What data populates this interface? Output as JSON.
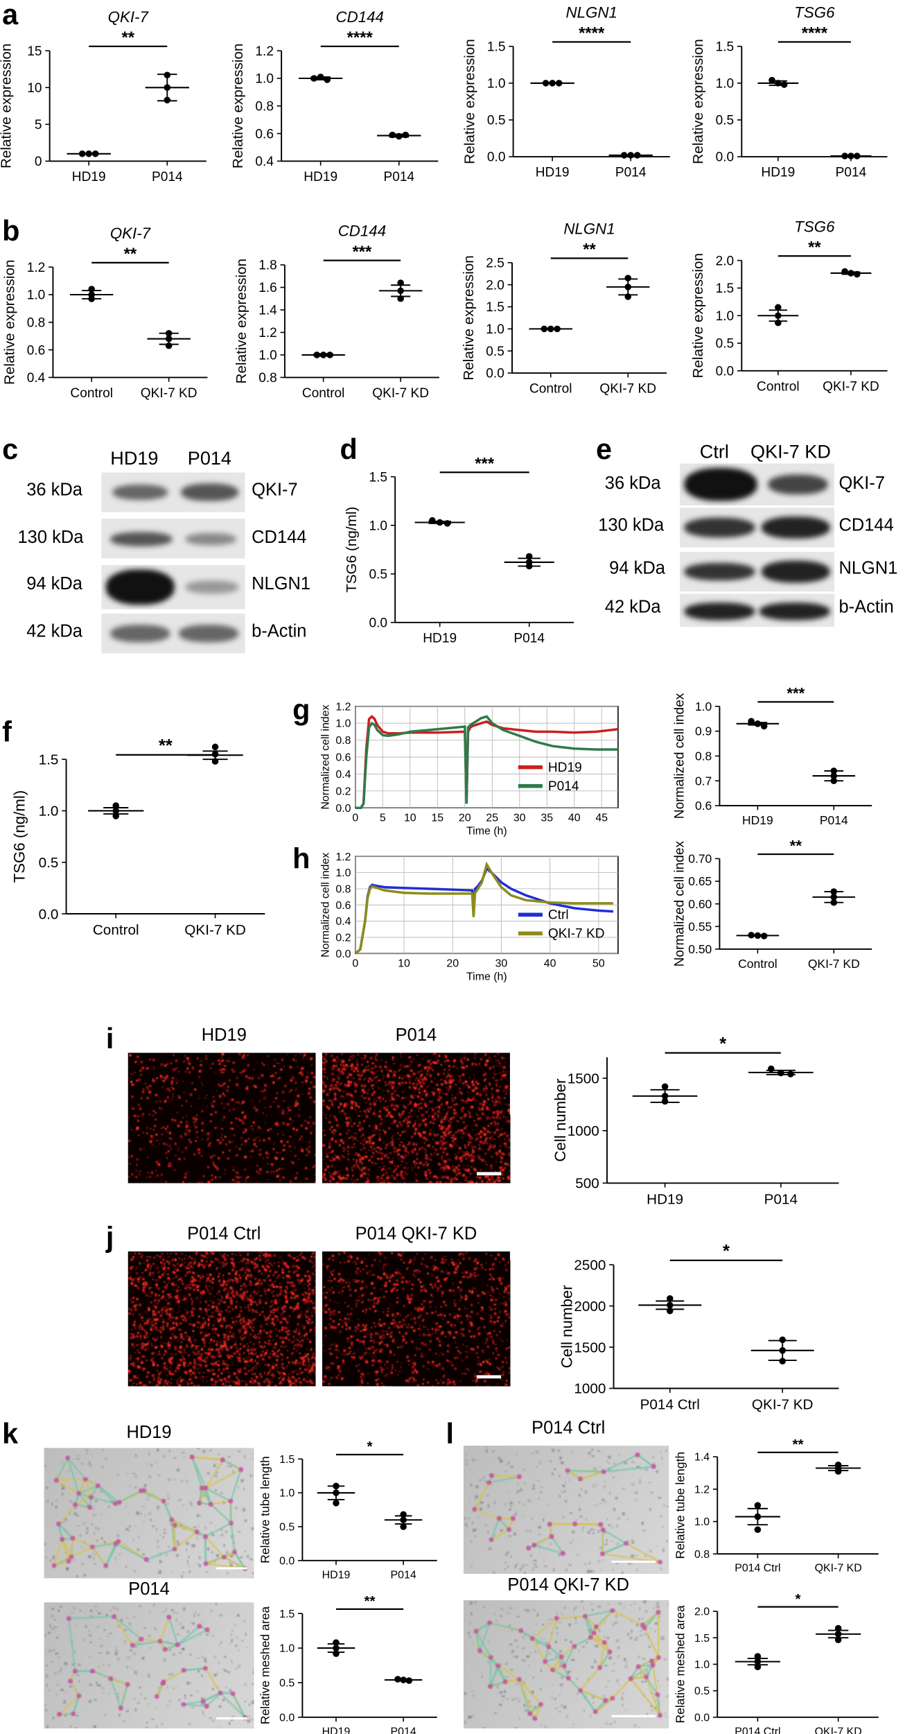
{
  "labels": {
    "a": "a",
    "b": "b",
    "c": "c",
    "d": "d",
    "e": "e",
    "f": "f",
    "g": "g",
    "h": "h",
    "i": "i",
    "j": "j",
    "k": "k",
    "l": "l"
  },
  "blots": {
    "c": {
      "columns": [
        "HD19",
        "P014"
      ],
      "kda": [
        "36 kDa",
        "130 kDa",
        "94 kDa",
        "42 kDa"
      ],
      "proteins": [
        "QKI-7",
        "CD144",
        "NLGN1",
        "b-Actin"
      ]
    },
    "e": {
      "columns": [
        "Ctrl",
        "QKI-7 KD"
      ],
      "kda": [
        "36 kDa",
        "130 kDa",
        "94 kDa",
        "42 kDa"
      ],
      "proteins": [
        "QKI-7",
        "CD144",
        "NLGN1",
        "b-Actin"
      ]
    }
  },
  "images": {
    "i_left": "HD19",
    "i_right": "P014",
    "j_left": "P014 Ctrl",
    "j_right": "P014 QKI-7 KD",
    "k_top": "HD19",
    "k_bottom": "P014",
    "l_top": "P014 Ctrl",
    "l_bottom": "P014 QKI-7 KD"
  },
  "colors": {
    "hd19": "#cc1f1f",
    "p014": "#2e7a4a",
    "ctrl": "#1f2fd6",
    "qki7kd": "#8c8c1a",
    "fluor_dot": "#ff2020",
    "grid": "#bbbbbb"
  },
  "chart_data": [
    {
      "id": "a1",
      "type": "scatter",
      "title": "QKI-7",
      "title_italic": true,
      "ylabel": "Relative expression",
      "categories": [
        "HD19",
        "P014"
      ],
      "ylim": [
        0,
        15
      ],
      "yticks": [
        0,
        5,
        10,
        15
      ],
      "groups": [
        {
          "points": [
            1,
            1,
            1
          ],
          "mean": 1,
          "sem": 0.05
        },
        {
          "points": [
            11.7,
            10,
            8.3
          ],
          "mean": 10,
          "sem": 1.8
        }
      ],
      "sig": "**"
    },
    {
      "id": "a2",
      "type": "scatter",
      "title": "CD144",
      "title_italic": true,
      "ylabel": "Relative expression",
      "categories": [
        "HD19",
        "P014"
      ],
      "ylim": [
        0.4,
        1.2
      ],
      "yticks": [
        0.4,
        0.6,
        0.8,
        1.0,
        1.2
      ],
      "groups": [
        {
          "points": [
            1.0,
            1.01,
            0.99
          ],
          "mean": 1.0,
          "sem": 0.01
        },
        {
          "points": [
            0.59,
            0.58,
            0.59
          ],
          "mean": 0.585,
          "sem": 0.01
        }
      ],
      "sig": "****"
    },
    {
      "id": "a3",
      "type": "scatter",
      "title": "NLGN1",
      "title_italic": true,
      "ylabel": "Relative expression",
      "categories": [
        "HD19",
        "P014"
      ],
      "ylim": [
        0,
        1.5
      ],
      "yticks": [
        0.0,
        0.5,
        1.0,
        1.5
      ],
      "groups": [
        {
          "points": [
            1.0,
            1.0,
            1.0
          ],
          "mean": 1.0,
          "sem": 0.005
        },
        {
          "points": [
            0.02,
            0.02,
            0.02
          ],
          "mean": 0.02,
          "sem": 0.005
        }
      ],
      "sig": "****"
    },
    {
      "id": "a4",
      "type": "scatter",
      "title": "TSG6",
      "title_italic": true,
      "ylabel": "Relative expression",
      "categories": [
        "HD19",
        "P014"
      ],
      "ylim": [
        0,
        1.5
      ],
      "yticks": [
        0.0,
        0.5,
        1.0,
        1.5
      ],
      "groups": [
        {
          "points": [
            1.04,
            1.0,
            0.98
          ],
          "mean": 1.0,
          "sem": 0.03
        },
        {
          "points": [
            0.01,
            0.01,
            0.01
          ],
          "mean": 0.01,
          "sem": 0.005
        }
      ],
      "sig": "****"
    },
    {
      "id": "b1",
      "type": "scatter",
      "title": "QKI-7",
      "title_italic": true,
      "ylabel": "Relative expression",
      "categories": [
        "Control",
        "QKI-7 KD"
      ],
      "ylim": [
        0.4,
        1.2
      ],
      "yticks": [
        0.4,
        0.6,
        0.8,
        1.0,
        1.2
      ],
      "groups": [
        {
          "points": [
            1.04,
            1.0,
            0.97
          ],
          "mean": 1.0,
          "sem": 0.03
        },
        {
          "points": [
            0.72,
            0.68,
            0.63
          ],
          "mean": 0.68,
          "sem": 0.04
        }
      ],
      "sig": "**"
    },
    {
      "id": "b2",
      "type": "scatter",
      "title": "CD144",
      "title_italic": true,
      "ylabel": "Relative expression",
      "categories": [
        "Control",
        "QKI-7 KD"
      ],
      "ylim": [
        0.8,
        1.8
      ],
      "yticks": [
        0.8,
        1.0,
        1.2,
        1.4,
        1.6,
        1.8
      ],
      "groups": [
        {
          "points": [
            1.0,
            1.0,
            1.0
          ],
          "mean": 1.0,
          "sem": 0.01
        },
        {
          "points": [
            1.64,
            1.57,
            1.5
          ],
          "mean": 1.57,
          "sem": 0.05
        }
      ],
      "sig": "***"
    },
    {
      "id": "b3",
      "type": "scatter",
      "title": "NLGN1",
      "title_italic": true,
      "ylabel": "Relative expression",
      "categories": [
        "Control",
        "QKI-7 KD"
      ],
      "ylim": [
        0,
        2.5
      ],
      "yticks": [
        0.0,
        0.5,
        1.0,
        1.5,
        2.0,
        2.5
      ],
      "groups": [
        {
          "points": [
            1.0,
            1.0,
            1.0
          ],
          "mean": 1.0,
          "sem": 0.01
        },
        {
          "points": [
            2.15,
            1.95,
            1.73
          ],
          "mean": 1.95,
          "sem": 0.18
        }
      ],
      "sig": "**"
    },
    {
      "id": "b4",
      "type": "scatter",
      "title": "TSG6",
      "title_italic": true,
      "ylabel": "Relative expression",
      "categories": [
        "Control",
        "QKI-7 KD"
      ],
      "ylim": [
        0,
        2.0
      ],
      "yticks": [
        0.0,
        0.5,
        1.0,
        1.5,
        2.0
      ],
      "groups": [
        {
          "points": [
            1.15,
            1.0,
            0.87
          ],
          "mean": 1.0,
          "sem": 0.1
        },
        {
          "points": [
            1.8,
            1.77,
            1.75
          ],
          "mean": 1.77,
          "sem": 0.02
        }
      ],
      "sig": "**"
    },
    {
      "id": "d",
      "type": "scatter",
      "title": "",
      "ylabel": "TSG6 (ng/ml)",
      "categories": [
        "HD19",
        "P014"
      ],
      "ylim": [
        0,
        1.5
      ],
      "yticks": [
        0.0,
        0.5,
        1.0,
        1.5
      ],
      "groups": [
        {
          "points": [
            1.05,
            1.03,
            1.02
          ],
          "mean": 1.03,
          "sem": 0.01
        },
        {
          "points": [
            0.68,
            0.62,
            0.58
          ],
          "mean": 0.62,
          "sem": 0.04
        }
      ],
      "sig": "***"
    },
    {
      "id": "f",
      "type": "scatter",
      "title": "",
      "ylabel": "TSG6 (ng/ml)",
      "categories": [
        "Control",
        "QKI-7 KD"
      ],
      "ylim": [
        0,
        1.5
      ],
      "yticks": [
        0.0,
        0.5,
        1.0,
        1.5
      ],
      "groups": [
        {
          "points": [
            1.05,
            1.0,
            0.95
          ],
          "mean": 1.0,
          "sem": 0.03
        },
        {
          "points": [
            1.62,
            1.55,
            1.48
          ],
          "mean": 1.54,
          "sem": 0.04
        }
      ],
      "sig": "**"
    },
    {
      "id": "g_right",
      "type": "scatter",
      "title": "",
      "ylabel": "Normalized cell index",
      "categories": [
        "HD19",
        "P014"
      ],
      "ylim": [
        0.6,
        1.0
      ],
      "yticks": [
        0.6,
        0.7,
        0.8,
        0.9,
        1.0
      ],
      "groups": [
        {
          "points": [
            0.94,
            0.93,
            0.92
          ],
          "mean": 0.93,
          "sem": 0.005
        },
        {
          "points": [
            0.74,
            0.72,
            0.7
          ],
          "mean": 0.72,
          "sem": 0.02
        }
      ],
      "sig": "***"
    },
    {
      "id": "h_right",
      "type": "scatter",
      "title": "",
      "ylabel": "Normalized cell index",
      "categories": [
        "Control",
        "QKI-7 KD"
      ],
      "ylim": [
        0.5,
        0.7
      ],
      "yticks": [
        0.5,
        0.55,
        0.6,
        0.65,
        0.7
      ],
      "groups": [
        {
          "points": [
            0.531,
            0.53,
            0.529
          ],
          "mean": 0.53,
          "sem": 0.001
        },
        {
          "points": [
            0.627,
            0.615,
            0.603
          ],
          "mean": 0.615,
          "sem": 0.012
        }
      ],
      "sig": "**"
    },
    {
      "id": "i_right",
      "type": "scatter",
      "title": "",
      "ylabel": "Cell number",
      "categories": [
        "HD19",
        "P014"
      ],
      "ylim": [
        500,
        1700
      ],
      "yticks": [
        500,
        1000,
        1500
      ],
      "groups": [
        {
          "points": [
            1420,
            1330,
            1280
          ],
          "mean": 1330,
          "sem": 60
        },
        {
          "points": [
            1590,
            1550,
            1540
          ],
          "mean": 1555,
          "sem": 20
        }
      ],
      "sig": "*"
    },
    {
      "id": "j_right",
      "type": "scatter",
      "title": "",
      "ylabel": "Cell number",
      "categories": [
        "P014 Ctrl",
        "QKI-7 KD"
      ],
      "ylim": [
        1000,
        2500
      ],
      "yticks": [
        1000,
        1500,
        2000,
        2500
      ],
      "groups": [
        {
          "points": [
            2090,
            2010,
            1940
          ],
          "mean": 2010,
          "sem": 50
        },
        {
          "points": [
            1590,
            1460,
            1330
          ],
          "mean": 1460,
          "sem": 120
        }
      ],
      "sig": "*"
    },
    {
      "id": "k1",
      "type": "scatter",
      "title": "",
      "ylabel": "Relative tube length",
      "categories": [
        "HD19",
        "P014"
      ],
      "ylim": [
        0,
        1.5
      ],
      "yticks": [
        0.0,
        0.5,
        1.0,
        1.5
      ],
      "groups": [
        {
          "points": [
            1.1,
            1.0,
            0.85
          ],
          "mean": 1.0,
          "sem": 0.1
        },
        {
          "points": [
            0.68,
            0.6,
            0.5
          ],
          "mean": 0.6,
          "sem": 0.06
        }
      ],
      "sig": "*"
    },
    {
      "id": "k2",
      "type": "scatter",
      "title": "",
      "ylabel": "Relative meshed area",
      "categories": [
        "HD19",
        "P014"
      ],
      "ylim": [
        0,
        1.5
      ],
      "yticks": [
        0.0,
        0.5,
        1.0,
        1.5
      ],
      "groups": [
        {
          "points": [
            1.08,
            1.0,
            0.92
          ],
          "mean": 1.0,
          "sem": 0.06
        },
        {
          "points": [
            0.55,
            0.54,
            0.53
          ],
          "mean": 0.54,
          "sem": 0.01
        }
      ],
      "sig": "**"
    },
    {
      "id": "l1",
      "type": "scatter",
      "title": "",
      "ylabel": "Relative tube length",
      "categories": [
        "P014 Ctrl",
        "QKI-7 KD"
      ],
      "ylim": [
        0.8,
        1.4
      ],
      "yticks": [
        0.8,
        1.0,
        1.2,
        1.4
      ],
      "groups": [
        {
          "points": [
            1.1,
            1.03,
            0.95
          ],
          "mean": 1.03,
          "sem": 0.05
        },
        {
          "points": [
            1.35,
            1.33,
            1.31
          ],
          "mean": 1.33,
          "sem": 0.015
        }
      ],
      "sig": "**"
    },
    {
      "id": "l2",
      "type": "scatter",
      "title": "",
      "ylabel": "Relative meshed area",
      "categories": [
        "P014 Ctrl",
        "QKI-7 KD"
      ],
      "ylim": [
        0,
        2.0
      ],
      "yticks": [
        0.0,
        0.5,
        1.0,
        1.5,
        2.0
      ],
      "groups": [
        {
          "points": [
            1.15,
            1.05,
            0.95
          ],
          "mean": 1.05,
          "sem": 0.06
        },
        {
          "points": [
            1.68,
            1.57,
            1.46
          ],
          "mean": 1.57,
          "sem": 0.07
        }
      ],
      "sig": "*"
    },
    {
      "id": "g_left",
      "type": "line",
      "xlabel": "Time (h)",
      "ylabel": "Normalized cell index",
      "xlim": [
        0,
        48
      ],
      "ylim": [
        0,
        1.2
      ],
      "xticks": [
        0,
        5,
        10,
        15,
        20,
        25,
        30,
        35,
        40,
        45
      ],
      "yticks": [
        0,
        0.2,
        0.4,
        0.6,
        0.8,
        1.0,
        1.2
      ],
      "grid": true,
      "legend": "inside-center-right",
      "series": [
        {
          "name": "HD19",
          "x": [
            0,
            1,
            1.5,
            2,
            2.5,
            3,
            3.5,
            4,
            5,
            6,
            8,
            10,
            15,
            20,
            20.3,
            20.6,
            21,
            21.5,
            22,
            23,
            24,
            25,
            27,
            30,
            33,
            36,
            40,
            44,
            48
          ],
          "y": [
            0,
            0,
            0.05,
            0.7,
            1.05,
            1.08,
            1.05,
            0.98,
            0.9,
            0.88,
            0.88,
            0.89,
            0.89,
            0.9,
            0.05,
            0.9,
            0.95,
            0.97,
            0.98,
            1.0,
            1.02,
            0.98,
            0.94,
            0.92,
            0.9,
            0.9,
            0.89,
            0.9,
            0.93
          ]
        },
        {
          "name": "P014",
          "x": [
            0,
            1,
            1.5,
            2,
            2.5,
            3,
            3.5,
            4,
            5,
            6,
            8,
            10,
            15,
            20,
            20.3,
            20.6,
            21,
            21.5,
            22,
            23,
            24,
            25,
            27,
            30,
            33,
            36,
            40,
            44,
            48
          ],
          "y": [
            0,
            0,
            0.05,
            0.6,
            0.95,
            1.0,
            0.98,
            0.92,
            0.86,
            0.85,
            0.87,
            0.9,
            0.93,
            0.96,
            0.05,
            0.95,
            0.98,
            1.0,
            1.02,
            1.06,
            1.08,
            1.0,
            0.92,
            0.85,
            0.78,
            0.73,
            0.7,
            0.69,
            0.69
          ]
        }
      ]
    },
    {
      "id": "h_left",
      "type": "line",
      "xlabel": "Time (h)",
      "ylabel": "Normalized cell index",
      "xlim": [
        0,
        54
      ],
      "ylim": [
        0,
        1.2
      ],
      "xticks": [
        0,
        10,
        20,
        30,
        40,
        50
      ],
      "yticks": [
        0,
        0.2,
        0.4,
        0.6,
        0.8,
        1.0,
        1.2
      ],
      "grid": true,
      "legend": "inside-center-right",
      "series": [
        {
          "name": "Ctrl",
          "x": [
            0,
            1,
            2,
            2.5,
            3,
            3.5,
            4,
            6,
            10,
            15,
            20,
            24,
            24.3,
            24.6,
            25,
            26,
            27,
            28,
            30,
            32,
            35,
            40,
            45,
            50,
            53
          ],
          "y": [
            0,
            0.05,
            0.4,
            0.7,
            0.82,
            0.85,
            0.84,
            0.82,
            0.81,
            0.8,
            0.79,
            0.78,
            0.5,
            0.8,
            0.82,
            0.9,
            1.05,
            1.0,
            0.88,
            0.8,
            0.72,
            0.62,
            0.56,
            0.53,
            0.52
          ]
        },
        {
          "name": "QKI-7 KD",
          "x": [
            0,
            1,
            2,
            2.5,
            3,
            3.5,
            4,
            6,
            10,
            15,
            20,
            24,
            24.3,
            24.6,
            25,
            26,
            27,
            28,
            30,
            32,
            35,
            40,
            45,
            50,
            53
          ],
          "y": [
            0,
            0.05,
            0.4,
            0.68,
            0.8,
            0.83,
            0.82,
            0.78,
            0.75,
            0.74,
            0.74,
            0.74,
            0.45,
            0.75,
            0.78,
            0.88,
            1.1,
            1.0,
            0.82,
            0.72,
            0.66,
            0.63,
            0.62,
            0.62,
            0.62
          ]
        }
      ]
    }
  ]
}
